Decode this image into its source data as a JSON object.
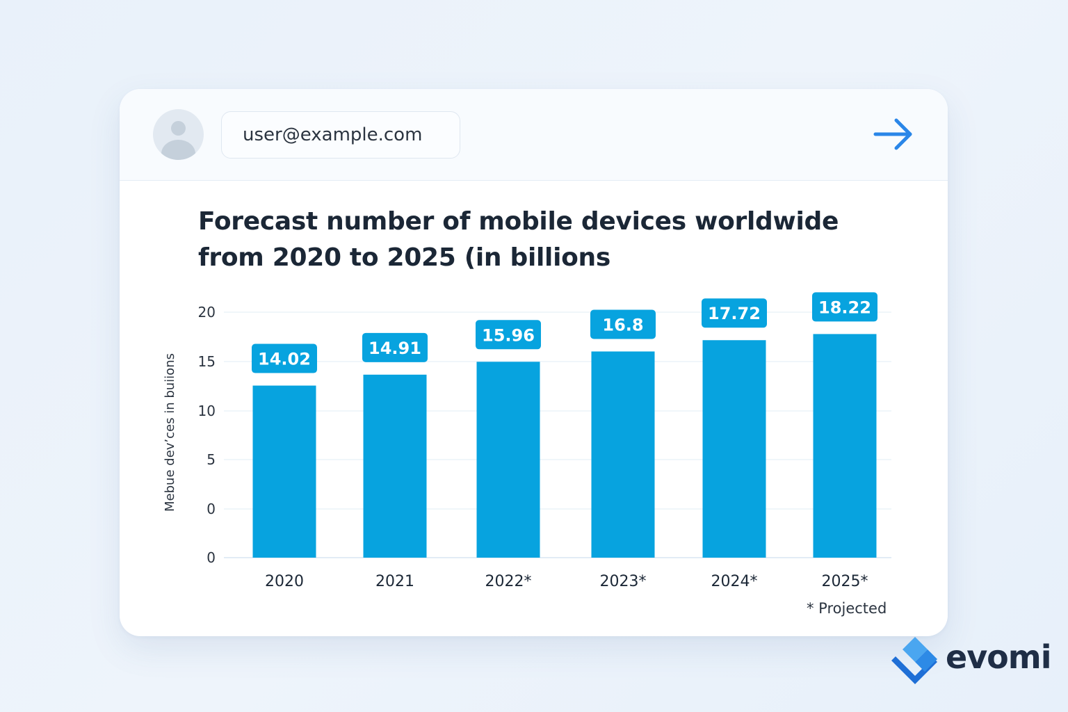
{
  "header": {
    "email": "user@example.com",
    "submit_icon": "arrow-right-icon",
    "avatar_icon": "user-avatar-icon"
  },
  "chart_data": {
    "type": "bar",
    "title": "Forecast number of mobile devices worldwide from 2020 to 2025 (in billions",
    "xlabel": "",
    "ylabel": "Mebue devʼces in buiions",
    "categories": [
      "2020",
      "2021",
      "2022*",
      "2023*",
      "2024*",
      "2025*"
    ],
    "values": [
      14.02,
      14.91,
      15.96,
      16.8,
      17.72,
      18.22
    ],
    "value_labels": [
      "14.02",
      "14.91",
      "15.96",
      "16.8",
      "17.72",
      "18.22"
    ],
    "y_ticks": [
      "20",
      "15",
      "10",
      "5",
      "0",
      "0"
    ],
    "ylim": [
      0,
      20
    ],
    "grid": true,
    "bar_color": "#07a3df",
    "label_color": "#07a3df",
    "footnote": "* Projected"
  },
  "brand": {
    "name": "evomi",
    "logo_icon": "evomi-logo-icon"
  }
}
